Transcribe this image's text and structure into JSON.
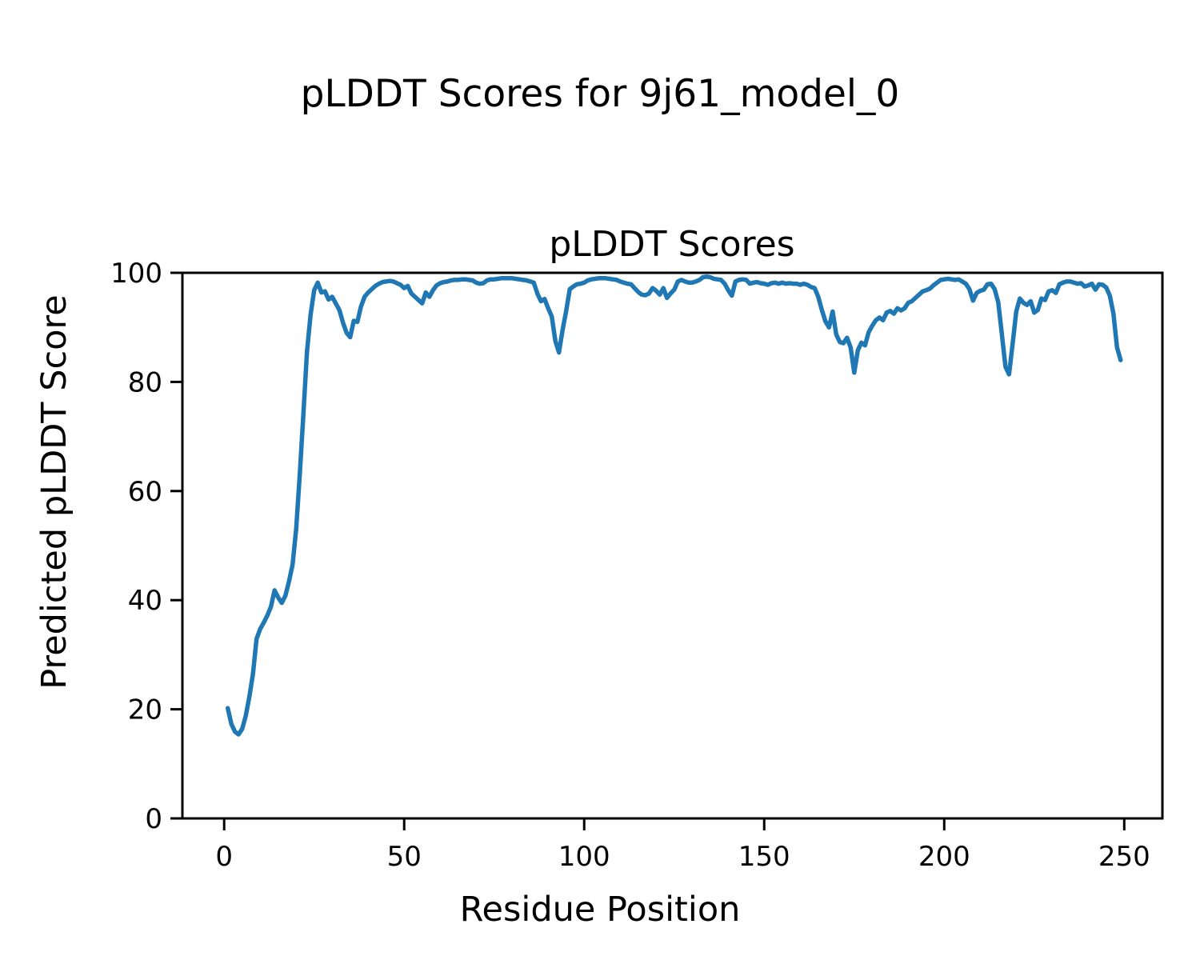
{
  "figure": {
    "suptitle": "pLDDT Scores for 9j61_model_0",
    "background_color": "#ffffff",
    "spine_color": "#000000"
  },
  "chart_data": {
    "type": "line",
    "title": "pLDDT Scores",
    "xlabel": "Residue Position",
    "ylabel": "Predicted pLDDT Score",
    "xlim": [
      -11.6,
      260.6
    ],
    "ylim": [
      0,
      100
    ],
    "xticks": [
      0,
      50,
      100,
      150,
      200,
      250
    ],
    "yticks": [
      0,
      20,
      40,
      60,
      80,
      100
    ],
    "grid": false,
    "legend": null,
    "line_color": "#1f77b4",
    "series": [
      {
        "name": "pLDDT",
        "x": [
          1,
          2,
          3,
          4,
          5,
          6,
          7,
          8,
          9,
          10,
          11,
          12,
          13,
          14,
          15,
          16,
          17,
          18,
          19,
          20,
          21,
          22,
          23,
          24,
          25,
          26,
          27,
          28,
          29,
          30,
          31,
          32,
          33,
          34,
          35,
          36,
          37,
          38,
          39,
          40,
          41,
          42,
          43,
          44,
          45,
          46,
          47,
          48,
          49,
          50,
          51,
          52,
          53,
          54,
          55,
          56,
          57,
          58,
          59,
          60,
          61,
          62,
          63,
          64,
          65,
          66,
          67,
          68,
          69,
          70,
          71,
          72,
          73,
          74,
          75,
          76,
          77,
          78,
          79,
          80,
          81,
          82,
          83,
          84,
          85,
          86,
          87,
          88,
          89,
          90,
          91,
          92,
          93,
          94,
          95,
          96,
          97,
          98,
          99,
          100,
          101,
          102,
          103,
          104,
          105,
          106,
          107,
          108,
          109,
          110,
          111,
          112,
          113,
          114,
          115,
          116,
          117,
          118,
          119,
          120,
          121,
          122,
          123,
          124,
          125,
          126,
          127,
          128,
          129,
          130,
          131,
          132,
          133,
          134,
          135,
          136,
          137,
          138,
          139,
          140,
          141,
          142,
          143,
          144,
          145,
          146,
          147,
          148,
          149,
          150,
          151,
          152,
          153,
          154,
          155,
          156,
          157,
          158,
          159,
          160,
          161,
          162,
          163,
          164,
          165,
          166,
          167,
          168,
          169,
          170,
          171,
          172,
          173,
          174,
          175,
          176,
          177,
          178,
          179,
          180,
          181,
          182,
          183,
          184,
          185,
          186,
          187,
          188,
          189,
          190,
          191,
          192,
          193,
          194,
          195,
          196,
          197,
          198,
          199,
          200,
          201,
          202,
          203,
          204,
          205,
          206,
          207,
          208,
          209,
          210,
          211,
          212,
          213,
          214,
          215,
          216,
          217,
          218,
          219,
          220,
          221,
          222,
          223,
          224,
          225,
          226,
          227,
          228,
          229,
          230,
          231,
          232,
          233,
          234,
          235,
          236,
          237,
          238,
          239,
          240,
          241,
          242,
          243,
          244,
          245,
          246,
          247,
          248,
          249
        ],
        "y": [
          20.2,
          17.3,
          15.9,
          15.4,
          16.4,
          18.8,
          22.3,
          26.5,
          32.9,
          34.7,
          35.9,
          37.2,
          38.8,
          41.8,
          40.5,
          39.5,
          40.8,
          43.4,
          46.5,
          53.0,
          63.0,
          74.0,
          85.5,
          92.3,
          96.8,
          98.2,
          96.4,
          96.6,
          95.1,
          95.6,
          94.4,
          93.2,
          90.9,
          89.0,
          88.2,
          91.2,
          91.0,
          93.8,
          95.6,
          96.4,
          97.0,
          97.6,
          98.0,
          98.3,
          98.4,
          98.5,
          98.4,
          98.1,
          97.8,
          97.2,
          97.6,
          96.2,
          95.6,
          95.0,
          94.4,
          96.4,
          95.6,
          96.8,
          97.7,
          98.1,
          98.3,
          98.4,
          98.6,
          98.7,
          98.7,
          98.8,
          98.8,
          98.7,
          98.6,
          98.2,
          98.0,
          98.1,
          98.6,
          98.8,
          98.8,
          98.9,
          99.0,
          99.0,
          99.0,
          99.0,
          98.9,
          98.8,
          98.7,
          98.6,
          98.4,
          98.2,
          96.2,
          94.8,
          95.2,
          93.5,
          92.0,
          87.5,
          85.4,
          89.5,
          93.0,
          97.0,
          97.5,
          97.9,
          98.0,
          98.2,
          98.6,
          98.8,
          98.9,
          99.0,
          99.0,
          99.0,
          98.9,
          98.8,
          98.7,
          98.4,
          98.2,
          98.0,
          97.9,
          97.2,
          96.5,
          96.0,
          95.9,
          96.2,
          97.2,
          96.7,
          96.0,
          97.2,
          95.4,
          96.2,
          96.9,
          98.4,
          98.7,
          98.4,
          98.2,
          98.2,
          98.4,
          98.7,
          99.2,
          99.3,
          99.2,
          98.9,
          98.8,
          98.7,
          98.0,
          96.8,
          95.8,
          98.4,
          98.7,
          98.8,
          98.7,
          98.0,
          98.2,
          98.3,
          98.1,
          98.0,
          97.8,
          98.1,
          98.2,
          98.0,
          98.2,
          98.0,
          98.1,
          98.0,
          98.0,
          97.8,
          98.0,
          97.8,
          97.4,
          97.2,
          95.6,
          93.2,
          91.1,
          90.0,
          92.9,
          88.7,
          87.3,
          87.1,
          88.1,
          86.3,
          81.7,
          85.8,
          87.2,
          86.7,
          89.1,
          90.3,
          91.3,
          91.8,
          91.3,
          92.7,
          93.0,
          92.5,
          93.5,
          93.1,
          93.5,
          94.5,
          94.8,
          95.4,
          96.0,
          96.6,
          96.8,
          97.1,
          97.7,
          98.2,
          98.7,
          98.8,
          98.9,
          98.8,
          98.7,
          98.8,
          98.4,
          98.0,
          97.0,
          94.9,
          96.3,
          96.7,
          96.9,
          97.9,
          98.0,
          97.0,
          94.6,
          88.8,
          82.8,
          81.4,
          87.0,
          92.9,
          95.3,
          94.5,
          94.1,
          94.8,
          92.7,
          93.2,
          95.3,
          95.0,
          96.6,
          96.8,
          96.3,
          97.9,
          98.2,
          98.4,
          98.4,
          98.2,
          98.0,
          98.1,
          97.5,
          97.7,
          98.0,
          96.9,
          97.9,
          97.8,
          97.3,
          95.8,
          92.5,
          86.3,
          84.0
        ]
      }
    ]
  }
}
